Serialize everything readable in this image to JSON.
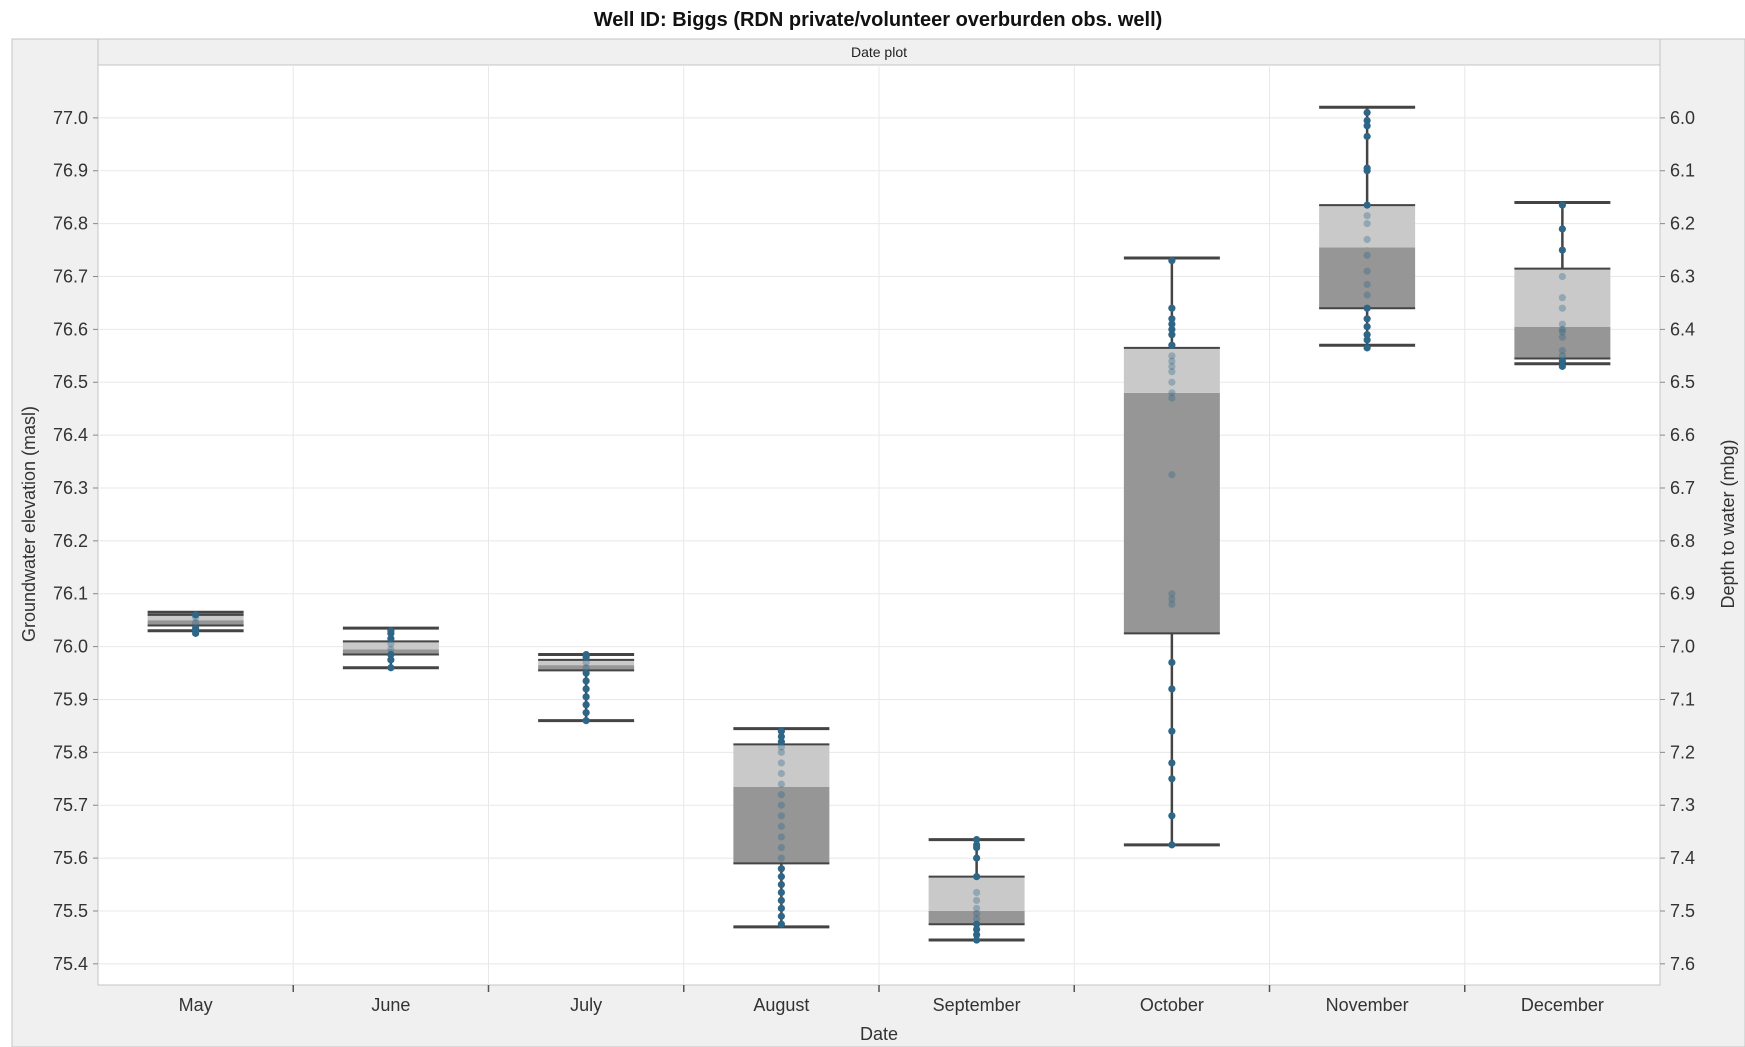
{
  "chart_data": {
    "type": "box",
    "title": "Well ID: Biggs (RDN private/volunteer overburden obs. well)",
    "panel_title": "Date plot",
    "xlabel": "Date",
    "ylabel": "Groundwater elevation (masl)",
    "y2label": "Depth to water (mbg)",
    "ylim": [
      75.36,
      77.1
    ],
    "y2_offset": 83.0,
    "yticks": [
      75.4,
      75.5,
      75.6,
      75.7,
      75.8,
      75.9,
      76.0,
      76.1,
      76.2,
      76.3,
      76.4,
      76.5,
      76.6,
      76.7,
      76.8,
      76.9,
      77.0
    ],
    "y2ticks": [
      6.0,
      6.1,
      6.2,
      6.3,
      6.4,
      6.5,
      6.6,
      6.7,
      6.8,
      6.9,
      7.0,
      7.1,
      7.2,
      7.3,
      7.4,
      7.5,
      7.6
    ],
    "grid": true,
    "categories": [
      "May",
      "June",
      "July",
      "August",
      "September",
      "October",
      "November",
      "December"
    ],
    "boxes": [
      {
        "category": "May",
        "min": 76.03,
        "q1": 76.04,
        "median": 76.05,
        "q3": 76.06,
        "max": 76.065,
        "points": [
          76.025,
          76.03,
          76.035,
          76.045,
          76.055,
          76.06
        ]
      },
      {
        "category": "June",
        "min": 75.96,
        "q1": 75.985,
        "median": 75.995,
        "q3": 76.01,
        "max": 76.035,
        "points": [
          75.96,
          75.975,
          75.985,
          75.995,
          76.005,
          76.015,
          76.025,
          76.03
        ]
      },
      {
        "category": "July",
        "min": 75.86,
        "q1": 75.955,
        "median": 75.965,
        "q3": 75.975,
        "max": 75.985,
        "points": [
          75.86,
          75.875,
          75.89,
          75.905,
          75.92,
          75.935,
          75.95,
          75.96,
          75.97,
          75.98,
          75.985
        ]
      },
      {
        "category": "August",
        "min": 75.47,
        "q1": 75.59,
        "median": 75.735,
        "q3": 75.815,
        "max": 75.845,
        "points": [
          75.475,
          75.49,
          75.505,
          75.52,
          75.535,
          75.55,
          75.565,
          75.58,
          75.6,
          75.62,
          75.64,
          75.66,
          75.68,
          75.7,
          75.72,
          75.74,
          75.76,
          75.78,
          75.8,
          75.81,
          75.82,
          75.83,
          75.84
        ]
      },
      {
        "category": "September",
        "min": 75.445,
        "q1": 75.475,
        "median": 75.5,
        "q3": 75.565,
        "max": 75.635,
        "points": [
          75.445,
          75.455,
          75.465,
          75.475,
          75.485,
          75.495,
          75.505,
          75.52,
          75.535,
          75.565,
          75.6,
          75.62,
          75.625,
          75.635
        ]
      },
      {
        "category": "October",
        "min": 75.625,
        "q1": 76.025,
        "median": 76.48,
        "q3": 76.565,
        "max": 76.735,
        "points": [
          75.625,
          75.68,
          75.75,
          75.78,
          75.84,
          75.92,
          75.97,
          76.08,
          76.09,
          76.1,
          76.325,
          76.47,
          76.48,
          76.5,
          76.52,
          76.53,
          76.54,
          76.55,
          76.57,
          76.59,
          76.6,
          76.61,
          76.62,
          76.64,
          76.73
        ]
      },
      {
        "category": "November",
        "min": 76.57,
        "q1": 76.64,
        "median": 76.755,
        "q3": 76.835,
        "max": 77.02,
        "points": [
          76.565,
          76.58,
          76.59,
          76.605,
          76.62,
          76.64,
          76.665,
          76.685,
          76.71,
          76.74,
          76.77,
          76.8,
          76.815,
          76.835,
          76.9,
          76.905,
          76.965,
          76.985,
          76.995,
          77.01
        ]
      },
      {
        "category": "December",
        "min": 76.535,
        "q1": 76.545,
        "median": 76.605,
        "q3": 76.715,
        "max": 76.84,
        "points": [
          76.53,
          76.54,
          76.55,
          76.56,
          76.585,
          76.595,
          76.6,
          76.61,
          76.64,
          76.66,
          76.7,
          76.75,
          76.79,
          76.835
        ]
      }
    ],
    "colors": {
      "box_lower": "#969696",
      "box_upper": "#c9c9c9",
      "whisker": "#444444",
      "point": "#2e6688",
      "grid": "#e8e8e8",
      "strip": "#f0f0f0"
    }
  }
}
